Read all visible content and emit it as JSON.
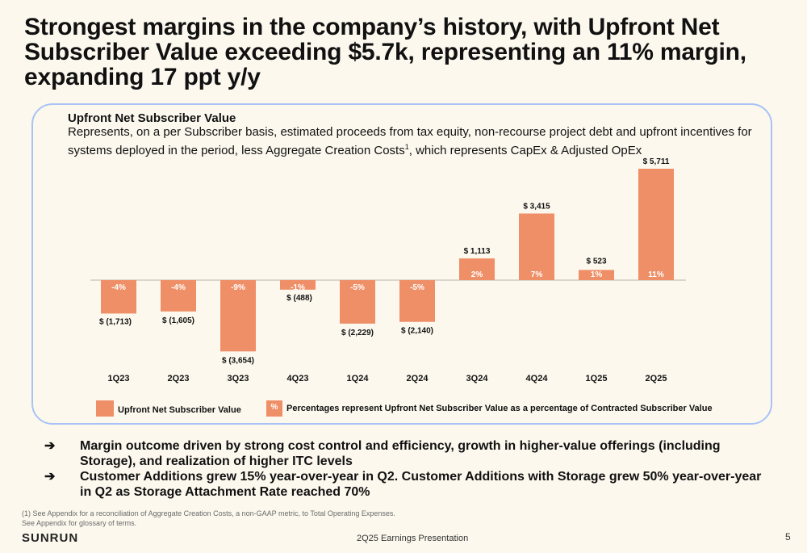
{
  "headline": "Strongest margins in the company’s history, with Upfront Net Subscriber Value exceeding $5.7k, representing an 11% margin, expanding 17 ppt y/y",
  "panel": {
    "title": "Upfront Net Subscriber Value",
    "description": "Represents, on a per Subscriber basis, estimated proceeds from tax equity, non-recourse project debt and upfront incentives for systems deployed in the period, less Aggregate Creation Costs",
    "description_sup": "1",
    "description_tail": ", which represents CapEx & Adjusted OpEx"
  },
  "chart_data": {
    "type": "bar",
    "categories": [
      "1Q23",
      "2Q23",
      "3Q23",
      "4Q23",
      "1Q24",
      "2Q24",
      "3Q24",
      "4Q24",
      "1Q25",
      "2Q25"
    ],
    "series": [
      {
        "name": "Upfront Net Subscriber Value",
        "values": [
          -1713,
          -1605,
          -3654,
          -488,
          -2229,
          -2140,
          1113,
          3415,
          523,
          5711
        ],
        "value_labels": [
          "$ (1,713)",
          "$ (1,605)",
          "$ (3,654)",
          "$ (488)",
          "$ (2,229)",
          "$ (2,140)",
          "$ 1,113",
          "$ 3,415",
          "$ 523",
          "$ 5,711"
        ],
        "percent_labels": [
          "-4%",
          "-4%",
          "-9%",
          "-1%",
          "-5%",
          "-5%",
          "2%",
          "7%",
          "1%",
          "11%"
        ]
      }
    ],
    "ylim": [
      -3654,
      5711
    ],
    "bar_color": "#ef8f67"
  },
  "legend": {
    "series_label": "Upfront Net Subscriber Value",
    "pct_symbol": "%",
    "pct_label": "Percentages represent Upfront Net Subscriber Value as a percentage of Contracted Subscriber Value"
  },
  "bullets": [
    "Margin outcome driven by strong cost control and efficiency, growth in higher-value offerings (including Storage), and realization of higher ITC levels",
    "Customer Additions grew 15% year-over-year in Q2.  Customer Additions with Storage grew 50% year-over-year in Q2 as Storage Attachment Rate reached 70%"
  ],
  "bullet_icon": "right-arrow-icon",
  "footnotes": [
    "(1) See Appendix for a reconciliation of Aggregate Creation Costs, a non-GAAP metric, to Total Operating Expenses.",
    "See Appendix for glossary of terms."
  ],
  "footer": {
    "logo": "SUNRUN",
    "center": "2Q25 Earnings Presentation",
    "page": "5"
  }
}
